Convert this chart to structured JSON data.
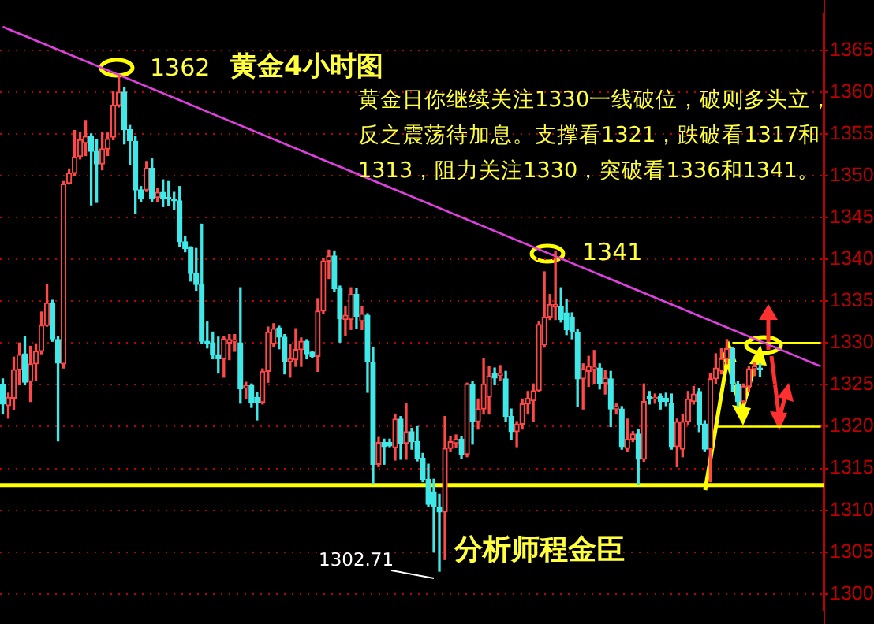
{
  "chart_data": {
    "type": "candlestick",
    "title": "黄金4小时图",
    "categories": [
      null,
      null,
      null,
      null,
      null,
      null,
      null,
      null,
      null,
      null,
      null,
      null,
      null,
      null,
      null,
      null,
      null,
      null,
      null,
      null,
      null,
      null,
      null,
      null,
      null,
      null,
      null,
      null,
      null,
      null,
      null,
      null,
      null,
      null,
      null,
      null,
      null,
      null,
      null,
      null,
      null,
      null,
      null,
      null,
      null,
      null,
      null,
      null,
      null,
      null,
      null,
      null,
      null,
      null,
      null,
      null,
      null,
      null,
      null,
      null,
      null,
      null,
      null,
      null,
      null,
      null,
      null,
      null,
      null,
      null,
      null,
      null,
      null,
      null,
      null,
      null,
      null,
      null,
      null,
      null,
      null,
      null,
      null,
      null,
      null,
      null,
      null,
      null,
      null,
      null,
      null,
      null,
      null,
      null,
      null,
      null,
      null,
      null,
      null,
      null,
      null,
      null,
      null,
      null,
      null,
      null,
      null,
      null,
      null,
      null,
      null,
      null,
      null,
      null,
      null,
      null,
      null,
      null,
      null,
      null,
      null,
      null,
      null,
      null,
      null,
      null,
      null,
      null,
      null,
      null,
      null,
      null,
      null,
      null,
      null,
      null,
      null,
      null,
      null,
      null,
      null,
      null,
      null,
      null,
      null,
      null,
      null,
      null,
      null
    ],
    "ohlc": [
      [
        1325,
        1325.7,
        1321.5,
        1322.7
      ],
      [
        1322.5,
        1324,
        1321,
        1323.5
      ],
      [
        1323.4,
        1328.3,
        1322,
        1326.8
      ],
      [
        1326.8,
        1330,
        1325,
        1328.6
      ],
      [
        1328.7,
        1330.8,
        1325,
        1325.3
      ],
      [
        1325.4,
        1329.6,
        1323,
        1327.5
      ],
      [
        1327.5,
        1329.9,
        1325.5,
        1329
      ],
      [
        1329,
        1333.7,
        1328.7,
        1332.1
      ],
      [
        1332.1,
        1337,
        1332,
        1334.8
      ],
      [
        1334.8,
        1335.1,
        1330.2,
        1330.5
      ],
      [
        1330.4,
        1330.8,
        1318.3,
        1327.6
      ],
      [
        1327.5,
        1349.3,
        1327,
        1349
      ],
      [
        1349.1,
        1350.8,
        1349,
        1350.3
      ],
      [
        1350.3,
        1355.4,
        1350,
        1352.2
      ],
      [
        1352.3,
        1355.2,
        1352,
        1354.3
      ],
      [
        1353.9,
        1356.6,
        1352.4,
        1354.7
      ],
      [
        1354.7,
        1355,
        1346.5,
        1352.9
      ],
      [
        1352.9,
        1354.3,
        1346.8,
        1351.4
      ],
      [
        1351.4,
        1355.2,
        1350.7,
        1353.2
      ],
      [
        1353.2,
        1355.1,
        1352.4,
        1354.4
      ],
      [
        1354.6,
        1360,
        1354.3,
        1358.4
      ],
      [
        1358.4,
        1362,
        1358.2,
        1360
      ],
      [
        1360,
        1360.5,
        1353.8,
        1355.5
      ],
      [
        1355.5,
        1356,
        1351.3,
        1354.2
      ],
      [
        1354.1,
        1354.7,
        1345.5,
        1348.3
      ],
      [
        1348.3,
        1348.7,
        1346.9,
        1347.2
      ],
      [
        1348.3,
        1351.7,
        1348.1,
        1350.9
      ],
      [
        1350.9,
        1352,
        1346.9,
        1347.2
      ],
      [
        1347.4,
        1348.5,
        1346.9,
        1348
      ],
      [
        1348,
        1349.5,
        1346.3,
        1347.2
      ],
      [
        1347.3,
        1349.3,
        1346.4,
        1347.2
      ],
      [
        1347.2,
        1348,
        1346,
        1347
      ],
      [
        1347,
        1348.7,
        1341.5,
        1342.1
      ],
      [
        1342.1,
        1342.7,
        1340.9,
        1341.3
      ],
      [
        1341.4,
        1341.5,
        1337.4,
        1338.3
      ],
      [
        1338.3,
        1341.3,
        1336.3,
        1337
      ],
      [
        1337,
        1344.2,
        1329.9,
        1330.2
      ],
      [
        1330.2,
        1332.5,
        1329.4,
        1330
      ],
      [
        1330,
        1331.3,
        1328.1,
        1328.6
      ],
      [
        1328.6,
        1330.7,
        1326.4,
        1328.1
      ],
      [
        1328.1,
        1330.8,
        1325.9,
        1330.5
      ],
      [
        1330,
        1331,
        1328,
        1330.4
      ],
      [
        1330.2,
        1331,
        1329,
        1330.3
      ],
      [
        1330,
        1336.6,
        1322.8,
        1324.5
      ],
      [
        1324.6,
        1325.3,
        1323.3,
        1324.9
      ],
      [
        1324.9,
        1325.1,
        1322.3,
        1322.9
      ],
      [
        1323.5,
        1324.1,
        1320.8,
        1322.9
      ],
      [
        1322.9,
        1326.9,
        1322.7,
        1326.6
      ],
      [
        1326.6,
        1331.9,
        1325.3,
        1331.3
      ],
      [
        1329.9,
        1332.3,
        1329.6,
        1331.7
      ],
      [
        1331.8,
        1332,
        1329.3,
        1330.7
      ],
      [
        1330.7,
        1331,
        1326.3,
        1327.8
      ],
      [
        1327.8,
        1329.8,
        1325.9,
        1328.1
      ],
      [
        1328,
        1331.7,
        1327.2,
        1329.2
      ],
      [
        1329.2,
        1330.6,
        1327.2,
        1330.2
      ],
      [
        1330.2,
        1330.4,
        1328.1,
        1328.7
      ],
      [
        1328.9,
        1329,
        1328.3,
        1328.4
      ],
      [
        1328.4,
        1335.3,
        1326.6,
        1333.8
      ],
      [
        1333.8,
        1340.1,
        1333.5,
        1339.8
      ],
      [
        1339.8,
        1341.1,
        1337.7,
        1340.4
      ],
      [
        1340.4,
        1341,
        1336.2,
        1336.5
      ],
      [
        1336.5,
        1336.8,
        1330.1,
        1332.9
      ],
      [
        1332.8,
        1334.4,
        1330.9,
        1333.3
      ],
      [
        1332.8,
        1336.6,
        1331.6,
        1335.8
      ],
      [
        1335.8,
        1336.5,
        1331.7,
        1333.2
      ],
      [
        1332.6,
        1334.4,
        1331.6,
        1333.5
      ],
      [
        1333.3,
        1333.5,
        1324.1,
        1327.8
      ],
      [
        1327.7,
        1329.5,
        1313.2,
        1315.5
      ],
      [
        1315.5,
        1318.7,
        1315.2,
        1318.1
      ],
      [
        1318.1,
        1318.5,
        1315.5,
        1317.6
      ],
      [
        1318.1,
        1318.5,
        1317.6,
        1317.7
      ],
      [
        1317.5,
        1321.5,
        1316,
        1320.9
      ],
      [
        1320.9,
        1321.2,
        1316.1,
        1318
      ],
      [
        1318,
        1322.7,
        1316.1,
        1319.4
      ],
      [
        1319.4,
        1319.8,
        1317.3,
        1318.2
      ],
      [
        1318.2,
        1320,
        1315.9,
        1316.2
      ],
      [
        1316.2,
        1316.8,
        1313.4,
        1313.7
      ],
      [
        1313.7,
        1315.5,
        1310.5,
        1310.7
      ],
      [
        1312.2,
        1313.7,
        1305,
        1310.4
      ],
      [
        1310.4,
        1311.9,
        1302.71,
        1309.8
      ],
      [
        1309.8,
        1321.2,
        1304.1,
        1317.4
      ],
      [
        1317.4,
        1318.8,
        1317,
        1318.2
      ],
      [
        1318,
        1319,
        1317.5,
        1318.5
      ],
      [
        1318.5,
        1318.8,
        1316.2,
        1316.7
      ],
      [
        1316.7,
        1325.2,
        1316.4,
        1325.1
      ],
      [
        1325.1,
        1325.4,
        1317.9,
        1320.6
      ],
      [
        1320.6,
        1323.3,
        1319.7,
        1322.1
      ],
      [
        1322.1,
        1328.1,
        1321.5,
        1325.1
      ],
      [
        1323.6,
        1327.2,
        1321.5,
        1326
      ],
      [
        1326.3,
        1327,
        1325,
        1325.8
      ],
      [
        1326.1,
        1327.3,
        1325.5,
        1326.4
      ],
      [
        1325.7,
        1326.6,
        1320.6,
        1321.2
      ],
      [
        1321.2,
        1322.1,
        1318.5,
        1319.4
      ],
      [
        1319.4,
        1320.6,
        1317.6,
        1320.3
      ],
      [
        1320.3,
        1323.3,
        1319.7,
        1322.7
      ],
      [
        1322.7,
        1324.2,
        1321.5,
        1323.4
      ],
      [
        1323.1,
        1325.1,
        1320.6,
        1324.3
      ],
      [
        1324.3,
        1332.5,
        1324.2,
        1332.2
      ],
      [
        1329.8,
        1338.5,
        1329.5,
        1333.1
      ],
      [
        1333.1,
        1335.8,
        1332.8,
        1334.6
      ],
      [
        1334.3,
        1341,
        1332.8,
        1334.6
      ],
      [
        1334.3,
        1336.6,
        1332.5,
        1332.8
      ],
      [
        1333.6,
        1335.2,
        1331,
        1331.6
      ],
      [
        1333.1,
        1333.6,
        1330.5,
        1331.3
      ],
      [
        1331.3,
        1331.6,
        1322.4,
        1325.7
      ],
      [
        1325.7,
        1327.5,
        1322.1,
        1326.9
      ],
      [
        1326.6,
        1328.4,
        1324.8,
        1327.2
      ],
      [
        1326.9,
        1329.1,
        1325.1,
        1327
      ],
      [
        1327,
        1327.5,
        1324.5,
        1325.1
      ],
      [
        1325.2,
        1326.7,
        1323.9,
        1325.8
      ],
      [
        1325.7,
        1326.6,
        1320,
        1322.1
      ],
      [
        1322.1,
        1322.7,
        1321.5,
        1322.4
      ],
      [
        1322.1,
        1322.4,
        1317.3,
        1317.6
      ],
      [
        1317.4,
        1320.9,
        1317,
        1318.5
      ],
      [
        1318.5,
        1319.4,
        1318.2,
        1319.1
      ],
      [
        1319.1,
        1319.7,
        1313.1,
        1316.1
      ],
      [
        1316.1,
        1325.1,
        1315.8,
        1323
      ],
      [
        1323.6,
        1324.2,
        1322.7,
        1323.3
      ],
      [
        1323.3,
        1323.9,
        1322.8,
        1323.4
      ],
      [
        1323.6,
        1323.9,
        1322.1,
        1323
      ],
      [
        1323.4,
        1324,
        1322.5,
        1323
      ],
      [
        1322.7,
        1323.9,
        1317.3,
        1317.6
      ],
      [
        1317.6,
        1320.9,
        1315.2,
        1320.6
      ],
      [
        1317.3,
        1321.5,
        1316.4,
        1320.6
      ],
      [
        1320.6,
        1324.2,
        1320.3,
        1323.3
      ],
      [
        1323,
        1324.8,
        1322.7,
        1323.9
      ],
      [
        1324.2,
        1324.5,
        1319.4,
        1320.3
      ],
      [
        1320.3,
        1320.7,
        1317,
        1317.3
      ],
      [
        1317.3,
        1326.3,
        1313.4,
        1325.7
      ],
      [
        1325.7,
        1328.7,
        1325.1,
        1327
      ],
      [
        1326.7,
        1329.3,
        1326.3,
        1328.1
      ],
      [
        1328.1,
        1330.4,
        1327.5,
        1329.3
      ],
      [
        1329.3,
        1329.4,
        1324.2,
        1325.1
      ],
      [
        1325.1,
        1325.4,
        1322.4,
        1323
      ],
      [
        1323,
        1325.1,
        1322.8,
        1324.8
      ],
      [
        1324.8,
        1327.2,
        1324.2,
        1326.9
      ],
      [
        1326.9,
        1327.6,
        1326.1,
        1327.2
      ],
      [
        1327,
        1327.5,
        1326,
        1326.8
      ],
      null,
      null,
      null,
      null,
      null,
      null,
      null,
      null,
      null,
      null,
      null
    ],
    "series": [
      {
        "type": "line",
        "color": "#e040e0",
        "values": [
          1367.8,
          null,
          null,
          null,
          null,
          null,
          null,
          null,
          null,
          null,
          null,
          null,
          null,
          null,
          null,
          null,
          null,
          null,
          null,
          null,
          null,
          null,
          null,
          null,
          null,
          null,
          null,
          null,
          null,
          null,
          null,
          null,
          null,
          null,
          null,
          null,
          null,
          null,
          null,
          null,
          null,
          null,
          null,
          null,
          null,
          null,
          null,
          null,
          null,
          null,
          null,
          null,
          null,
          null,
          null,
          null,
          null,
          null,
          null,
          null,
          null,
          null,
          null,
          null,
          null,
          null,
          null,
          null,
          null,
          null,
          null,
          null,
          null,
          null,
          null,
          null,
          null,
          null,
          null,
          null,
          null,
          null,
          null,
          null,
          null,
          null,
          null,
          null,
          null,
          null,
          null,
          null,
          null,
          null,
          null,
          null,
          null,
          null,
          null,
          null,
          null,
          null,
          null,
          null,
          null,
          null,
          null,
          null,
          null,
          null,
          null,
          null,
          null,
          null,
          null,
          null,
          null,
          null,
          null,
          null,
          null,
          null,
          null,
          null,
          null,
          null,
          null,
          null,
          null,
          null,
          null,
          null,
          null,
          null,
          null,
          null,
          null,
          null,
          null,
          null,
          null,
          null,
          null,
          null,
          null,
          null,
          null,
          null,
          1327.2
        ]
      },
      {
        "type": "line",
        "color": "#ffff00",
        "values": [
          null,
          null,
          null,
          null,
          null,
          null,
          null,
          null,
          null,
          null,
          null,
          null,
          null,
          null,
          null,
          null,
          null,
          null,
          null,
          null,
          null,
          null,
          null,
          null,
          null,
          null,
          null,
          null,
          null,
          null,
          null,
          null,
          null,
          null,
          null,
          null,
          null,
          null,
          null,
          null,
          null,
          null,
          null,
          null,
          null,
          null,
          null,
          null,
          null,
          null,
          null,
          null,
          null,
          null,
          null,
          null,
          null,
          null,
          null,
          null,
          null,
          null,
          null,
          null,
          null,
          null,
          null,
          null,
          null,
          null,
          null,
          null,
          null,
          null,
          null,
          null,
          null,
          null,
          null,
          null,
          null,
          null,
          null,
          null,
          null,
          null,
          null,
          null,
          null,
          null,
          null,
          null,
          null,
          null,
          null,
          null,
          null,
          null,
          null,
          null,
          null,
          null,
          null,
          null,
          null,
          null,
          null,
          null,
          null,
          null,
          null,
          null,
          null,
          null,
          null,
          null,
          null,
          null,
          null,
          null,
          null,
          null,
          null,
          null,
          null,
          null,
          null,
          null,
          null,
          null,
          null,
          null,
          1330,
          1330,
          1330,
          1330,
          1330,
          1330,
          1330,
          1330,
          1330,
          1330,
          1330,
          1330,
          1330,
          1330,
          1330,
          1330,
          1330
        ]
      },
      {
        "type": "line",
        "color": "#ffff00",
        "values": [
          null,
          null,
          null,
          null,
          null,
          null,
          null,
          null,
          null,
          null,
          null,
          null,
          null,
          null,
          null,
          null,
          null,
          null,
          null,
          null,
          null,
          null,
          null,
          null,
          null,
          null,
          null,
          null,
          null,
          null,
          null,
          null,
          null,
          null,
          null,
          null,
          null,
          null,
          null,
          null,
          null,
          null,
          null,
          null,
          null,
          null,
          null,
          null,
          null,
          null,
          null,
          null,
          null,
          null,
          null,
          null,
          null,
          null,
          null,
          null,
          null,
          null,
          null,
          null,
          null,
          null,
          null,
          null,
          null,
          null,
          null,
          null,
          null,
          null,
          null,
          null,
          null,
          null,
          null,
          null,
          null,
          null,
          null,
          null,
          null,
          null,
          null,
          null,
          null,
          null,
          null,
          null,
          null,
          null,
          null,
          null,
          null,
          null,
          null,
          null,
          null,
          null,
          null,
          null,
          null,
          null,
          null,
          null,
          null,
          null,
          null,
          null,
          null,
          null,
          null,
          null,
          null,
          null,
          null,
          null,
          null,
          null,
          null,
          null,
          null,
          null,
          null,
          null,
          null,
          1320,
          1320,
          1320,
          1320,
          1320,
          1320,
          1320,
          1320,
          1320,
          1320,
          1320,
          1320,
          1320,
          1320,
          1320,
          1320,
          1320,
          1320,
          1320,
          1320
        ]
      }
    ],
    "ref_lines": [
      {
        "axis": "y",
        "value": 1313,
        "color": "#ffff00"
      }
    ],
    "annotations": [
      "1362",
      "1341",
      "1302.71",
      "黄金日你继续关注1330一线破位，破则多头立，反之震荡待加息。支撑看1321，跌破看1317和1313，阻力关注1330，突破看1336和1341。",
      "分析师程金臣"
    ],
    "ylim": [
      1298,
      1369.4
    ],
    "yticks": [
      1300,
      1305,
      1310,
      1315,
      1320,
      1325,
      1330,
      1335,
      1340,
      1345,
      1350,
      1355,
      1360,
      1365
    ],
    "grid": "y",
    "tick_labels": "y"
  }
}
